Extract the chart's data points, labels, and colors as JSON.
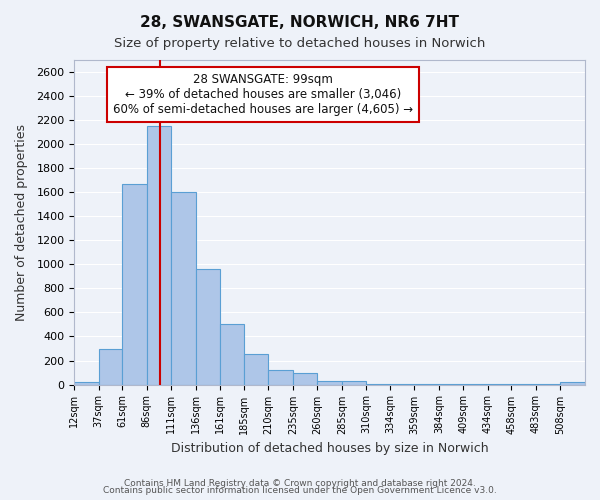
{
  "title1": "28, SWANSGATE, NORWICH, NR6 7HT",
  "title2": "Size of property relative to detached houses in Norwich",
  "xlabel": "Distribution of detached houses by size in Norwich",
  "ylabel": "Number of detached properties",
  "bin_labels": [
    "12sqm",
    "37sqm",
    "61sqm",
    "86sqm",
    "111sqm",
    "136sqm",
    "161sqm",
    "185sqm",
    "210sqm",
    "235sqm",
    "260sqm",
    "285sqm",
    "310sqm",
    "334sqm",
    "359sqm",
    "384sqm",
    "409sqm",
    "434sqm",
    "458sqm",
    "483sqm",
    "508sqm"
  ],
  "bar_heights": [
    20,
    300,
    1670,
    2150,
    1600,
    960,
    505,
    255,
    120,
    95,
    30,
    30,
    5,
    5,
    5,
    5,
    5,
    5,
    5,
    5,
    20
  ],
  "bar_color": "#aec6e8",
  "bar_edge_color": "#5a9fd4",
  "bg_color": "#eef2f9",
  "grid_color": "#ffffff",
  "property_line_x": 99,
  "property_line_color": "#cc0000",
  "annotation_title": "28 SWANSGATE: 99sqm",
  "annotation_line1": "← 39% of detached houses are smaller (3,046)",
  "annotation_line2": "60% of semi-detached houses are larger (4,605) →",
  "annotation_box_color": "#cc0000",
  "footnote1": "Contains HM Land Registry data © Crown copyright and database right 2024.",
  "footnote2": "Contains public sector information licensed under the Open Government Licence v3.0.",
  "ylim": [
    0,
    2700
  ],
  "yticks": [
    0,
    200,
    400,
    600,
    800,
    1000,
    1200,
    1400,
    1600,
    1800,
    2000,
    2200,
    2400,
    2600
  ],
  "bin_edges": [
    12,
    37,
    61,
    86,
    111,
    136,
    161,
    185,
    210,
    235,
    260,
    285,
    310,
    334,
    359,
    384,
    409,
    434,
    458,
    483,
    508,
    533
  ]
}
